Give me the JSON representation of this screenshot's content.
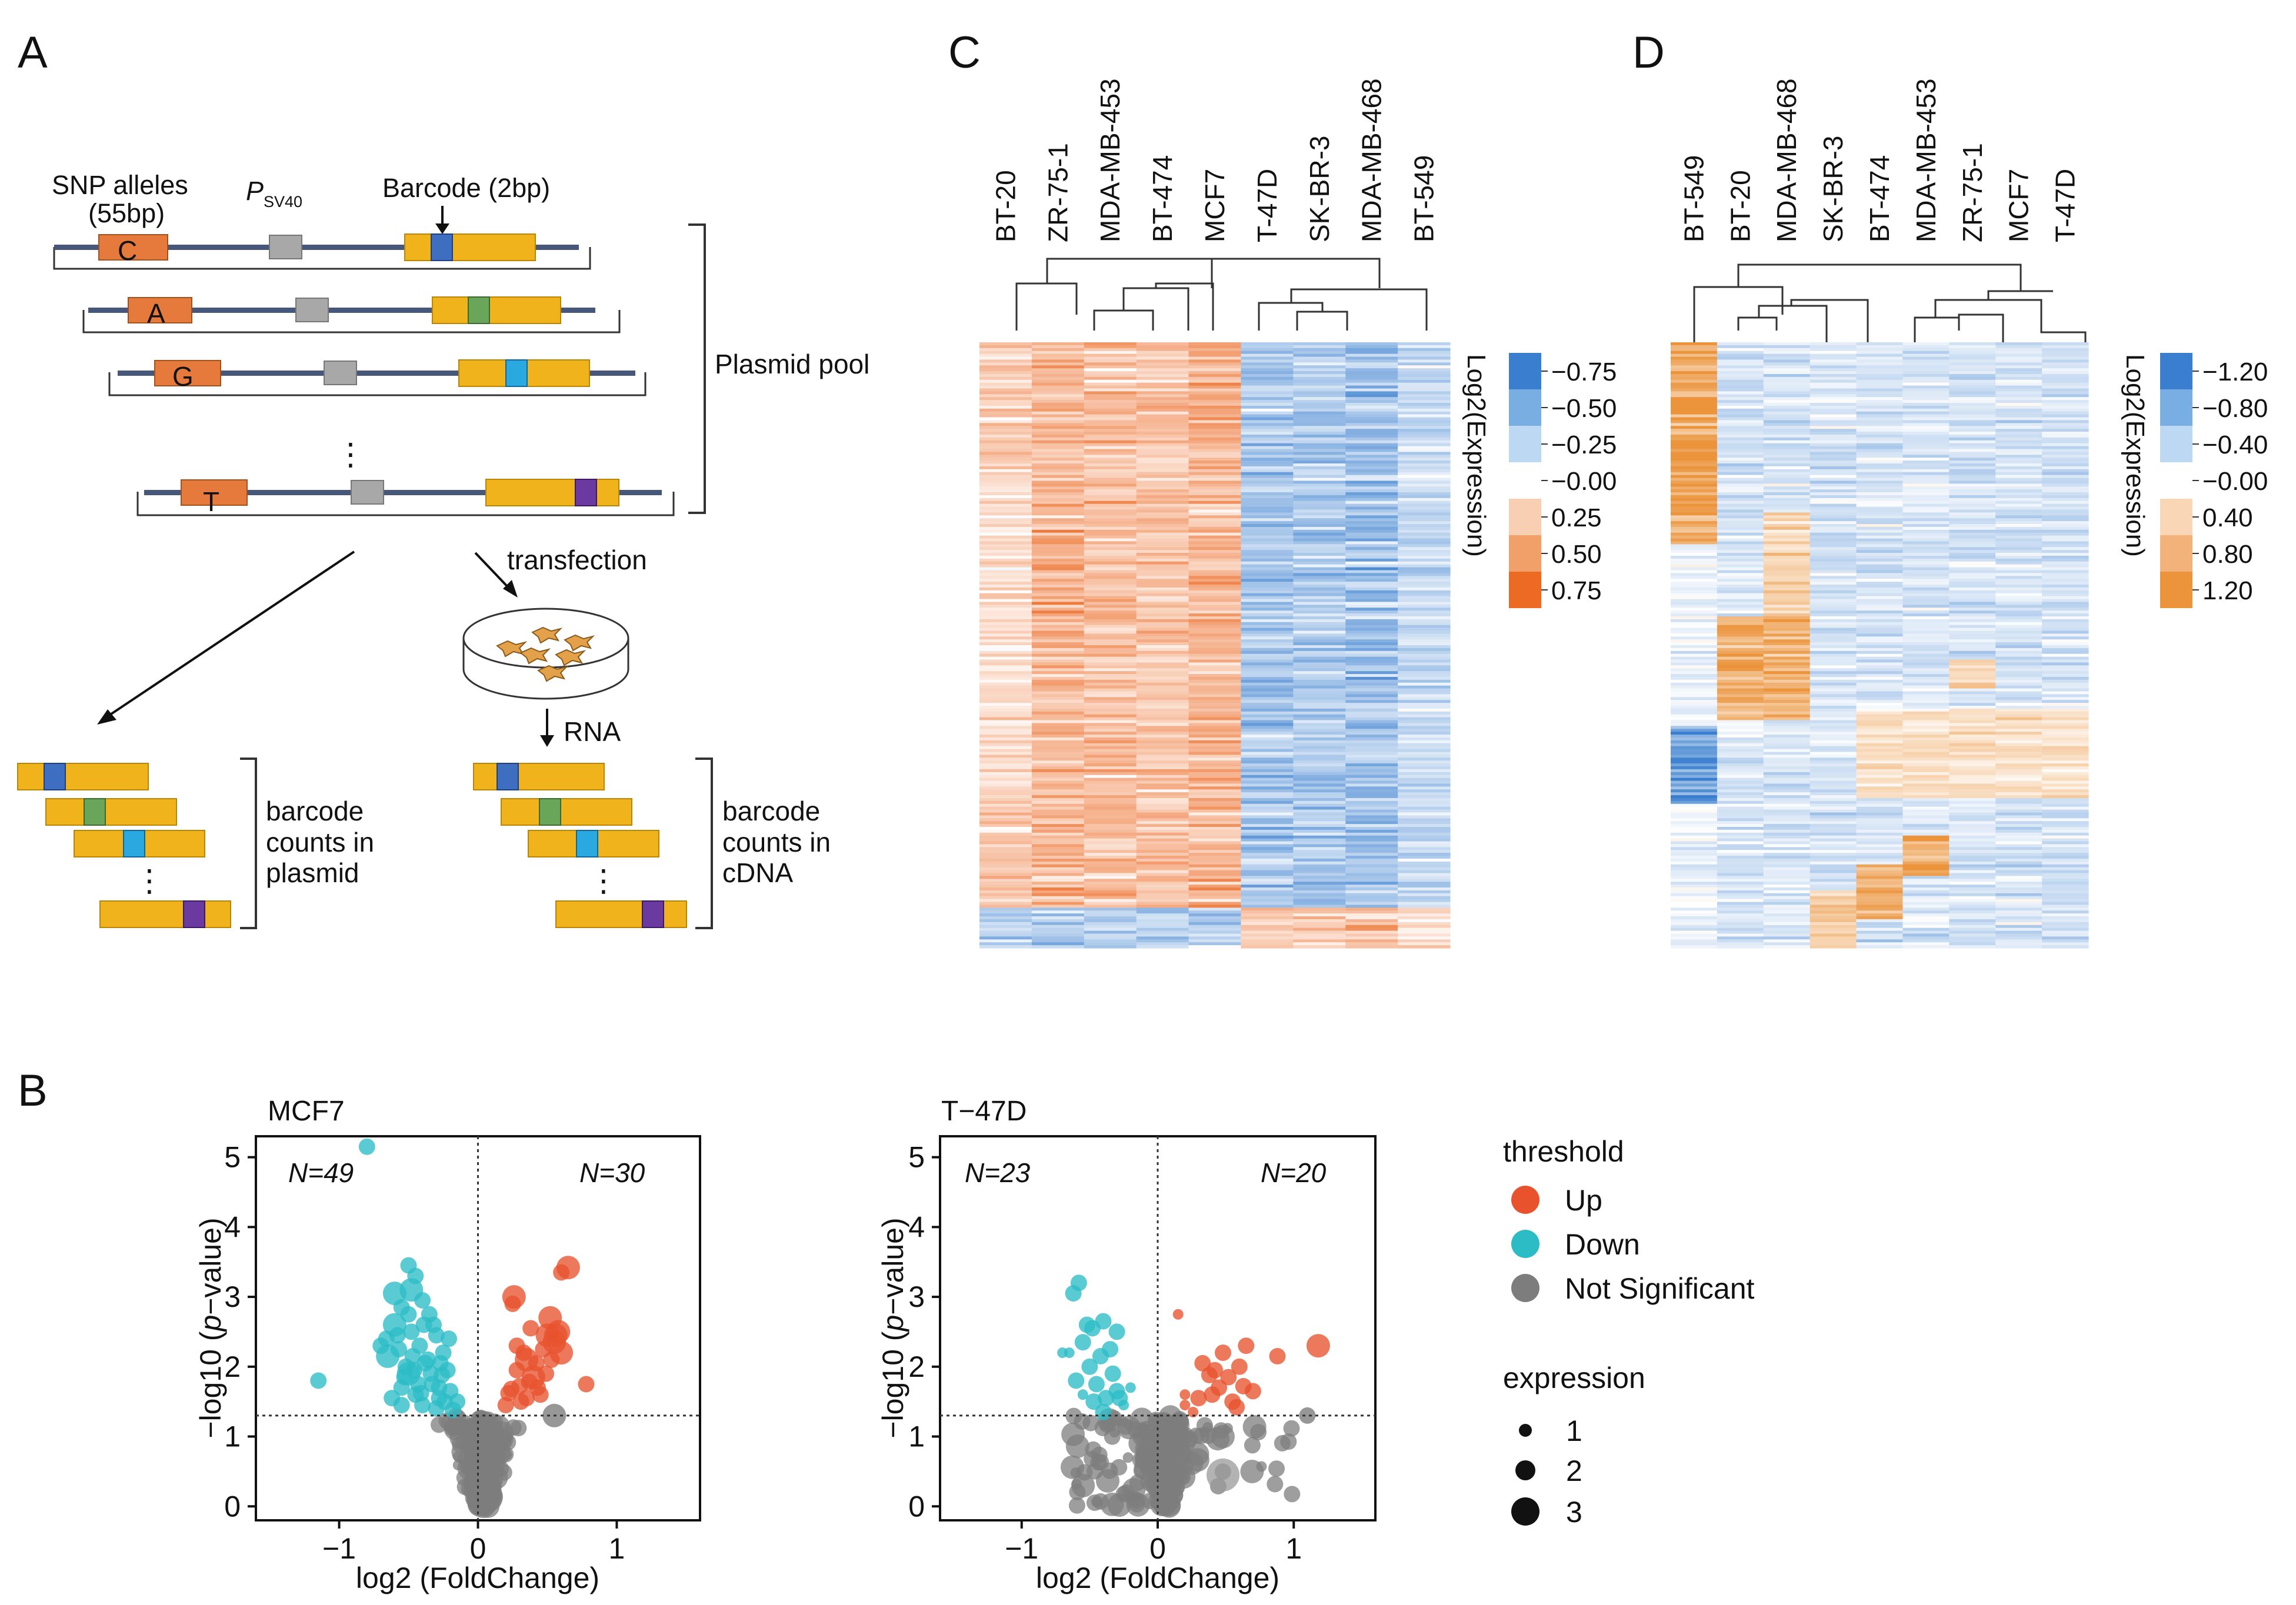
{
  "panels": {
    "a": {
      "letter": "A",
      "snp_label_1": "SNP alleles",
      "snp_label_2": "(55bp)",
      "promoter_p": "P",
      "promoter_sub": "SV40",
      "barcode_label": "Barcode (2bp)",
      "alleles": [
        "C",
        "A",
        "G",
        "T"
      ],
      "ellipsis": "⋮",
      "pool_label": "Plasmid pool",
      "transfection_label": "transfection",
      "rna_label": "RNA",
      "plasmid_counts": [
        "barcode",
        "counts in",
        "plasmid"
      ],
      "cdna_counts": [
        "barcode",
        "counts in",
        "cDNA"
      ],
      "colors": {
        "snp": "#e67a3c",
        "promoter": "#a8a8a8",
        "gene": "#f0b31c",
        "backbone": "#47577a",
        "barcodes": [
          "#3d6ec0",
          "#6aa65a",
          "#29a9e0",
          "#6a3aa0"
        ]
      }
    },
    "b": {
      "letter": "B",
      "plots": [
        {
          "title": "MCF7",
          "n_left": "N=49",
          "n_right": "N=30",
          "xlabel": "log2 (FoldChange)",
          "ylabel_pre": "−log10 (",
          "ylabel_it": "p",
          "ylabel_post": "−value)",
          "x_ticks": [
            "−1",
            "0",
            "1"
          ],
          "y_ticks": [
            "0",
            "1",
            "2",
            "3",
            "4",
            "5"
          ]
        },
        {
          "title": "T−47D",
          "n_left": "N=23",
          "n_right": "N=20",
          "xlabel": "log2 (FoldChange)",
          "ylabel_pre": "−log10 (",
          "ylabel_it": "p",
          "ylabel_post": "−value)",
          "x_ticks": [
            "−1",
            "0",
            "1"
          ],
          "y_ticks": [
            "0",
            "1",
            "2",
            "3",
            "4",
            "5"
          ]
        }
      ],
      "legend": {
        "threshold_title": "threshold",
        "threshold_items": [
          {
            "label": "Up",
            "color": "#e8532e"
          },
          {
            "label": "Down",
            "color": "#2bbcc6"
          },
          {
            "label": "Not Significant",
            "color": "#7d7d7d"
          }
        ],
        "expression_title": "expression",
        "expression_items": [
          "1",
          "2",
          "3"
        ]
      }
    },
    "c": {
      "letter": "C",
      "columns": [
        "BT-20",
        "ZR-75-1",
        "MDA-MB-453",
        "BT-474",
        "MCF7",
        "T-47D",
        "SK-BR-3",
        "MDA-MB-468",
        "BT-549"
      ],
      "scale_title": "Log2(Expression)",
      "scale_labels": [
        "−0.75",
        "−0.50",
        "−0.25",
        "−0.00",
        "0.25",
        "0.50",
        "0.75"
      ],
      "scale_colors": [
        "#3a7fcf",
        "#78aee2",
        "#bcd8f2",
        "#f8cfb2",
        "#f1a06a",
        "#ec6a24"
      ],
      "pos_rgb": [
        236,
        106,
        36
      ],
      "neg_rgb": [
        58,
        127,
        207
      ]
    },
    "d": {
      "letter": "D",
      "columns": [
        "BT-549",
        "BT-20",
        "MDA-MB-468",
        "SK-BR-3",
        "BT-474",
        "MDA-MB-453",
        "ZR-75-1",
        "MCF7",
        "T-47D"
      ],
      "scale_title": "Log2(Expression)",
      "scale_labels": [
        "−1.20",
        "−0.80",
        "−0.40",
        "−0.00",
        "0.40",
        "0.80",
        "1.20"
      ],
      "scale_colors": [
        "#3a7fcf",
        "#78aee2",
        "#bcd8f2",
        "#f8d6b6",
        "#f2b27a",
        "#eb943c"
      ],
      "pos_rgb": [
        235,
        148,
        60
      ],
      "neg_rgb": [
        58,
        127,
        207
      ]
    }
  },
  "chart_data": [
    {
      "type": "scatter",
      "title": "MCF7",
      "xlabel": "log2 (FoldChange)",
      "ylabel": "−log10 (p−value)",
      "xlim": [
        -1.6,
        1.6
      ],
      "ylim": [
        -0.2,
        5.3
      ],
      "threshold_y": 1.3,
      "threshold_x": 0,
      "series": [
        {
          "name": "Up",
          "points": [
            [
              0.22,
              1.62
            ],
            [
              0.28,
              1.95
            ],
            [
              0.35,
              2.1
            ],
            [
              0.42,
              2.05
            ],
            [
              0.5,
              2.45
            ],
            [
              0.55,
              2.35
            ],
            [
              0.6,
              3.35
            ],
            [
              0.65,
              3.42
            ],
            [
              0.25,
              2.9
            ],
            [
              0.38,
              2.55
            ],
            [
              0.47,
              2.25
            ],
            [
              0.3,
              1.72
            ],
            [
              0.4,
              1.85
            ],
            [
              0.52,
              2.7
            ],
            [
              0.58,
              2.5
            ],
            [
              0.35,
              1.55
            ],
            [
              0.45,
              1.6
            ],
            [
              0.78,
              1.75
            ],
            [
              0.2,
              1.45
            ],
            [
              0.28,
              2.3
            ],
            [
              0.33,
              2.2
            ],
            [
              0.56,
              2.45
            ],
            [
              0.26,
              3.0
            ],
            [
              0.49,
              1.9
            ],
            [
              0.43,
              1.7
            ],
            [
              0.31,
              1.5
            ],
            [
              0.37,
              1.78
            ],
            [
              0.24,
              1.68
            ],
            [
              0.6,
              2.2
            ],
            [
              0.53,
              2.1
            ]
          ],
          "sizes": [
            2,
            2,
            3,
            2,
            3,
            3,
            2,
            3,
            2,
            2,
            2,
            2,
            3,
            3,
            3,
            2,
            2,
            2,
            2,
            2,
            2,
            3,
            3,
            2,
            2,
            2,
            2,
            2,
            3,
            2
          ]
        },
        {
          "name": "Down",
          "points": [
            [
              -0.8,
              5.15
            ],
            [
              -0.5,
              3.45
            ],
            [
              -0.45,
              3.3
            ],
            [
              -0.6,
              3.05
            ],
            [
              -0.55,
              2.85
            ],
            [
              -0.4,
              2.95
            ],
            [
              -0.35,
              2.75
            ],
            [
              -0.65,
              2.15
            ],
            [
              -0.7,
              2.3
            ],
            [
              -0.48,
              2.5
            ],
            [
              -0.3,
              2.45
            ],
            [
              -0.25,
              2.2
            ],
            [
              -0.42,
              2.3
            ],
            [
              -0.38,
              2.05
            ],
            [
              -0.5,
              1.9
            ],
            [
              -0.55,
              1.7
            ],
            [
              -0.33,
              1.75
            ],
            [
              -0.28,
              1.55
            ],
            [
              -0.45,
              1.6
            ],
            [
              -0.2,
              1.65
            ],
            [
              -0.15,
              1.5
            ],
            [
              -1.15,
              1.8
            ],
            [
              -0.6,
              2.6
            ],
            [
              -0.32,
              2.6
            ],
            [
              -0.22,
              1.95
            ],
            [
              -0.58,
              2.45
            ],
            [
              -0.5,
              2.75
            ],
            [
              -0.62,
              1.55
            ],
            [
              -0.4,
              1.45
            ],
            [
              -0.36,
              2.1
            ],
            [
              -0.26,
              1.88
            ],
            [
              -0.47,
              2.15
            ],
            [
              -0.52,
              2.0
            ],
            [
              -0.43,
              1.75
            ],
            [
              -0.3,
              1.4
            ],
            [
              -0.18,
              1.38
            ],
            [
              -0.55,
              1.45
            ],
            [
              -0.66,
              2.4
            ],
            [
              -0.48,
              3.1
            ],
            [
              -0.39,
              2.6
            ],
            [
              -0.21,
              2.4
            ],
            [
              -0.28,
              1.7
            ],
            [
              -0.34,
              1.9
            ],
            [
              -0.46,
              1.95
            ],
            [
              -0.57,
              2.25
            ],
            [
              -0.27,
              2.05
            ],
            [
              -0.24,
              1.5
            ],
            [
              -0.41,
              1.62
            ],
            [
              -0.53,
              1.85
            ]
          ],
          "sizes": [
            2,
            2,
            2,
            3,
            2,
            2,
            2,
            3,
            2,
            2,
            2,
            2,
            2,
            2,
            3,
            2,
            2,
            2,
            2,
            2,
            2,
            2,
            3,
            2,
            2,
            2,
            2,
            2,
            2,
            2,
            2,
            2,
            2,
            2,
            2,
            2,
            2,
            2,
            3,
            2,
            2,
            2,
            2,
            2,
            2,
            2,
            2,
            2,
            2
          ]
        },
        {
          "name": "Not Significant",
          "clusters": "approx. 200 points concentrated along the volcano shape between x −0.4 and 0.55, y 0 to 1.3; notable points (0.55,1.3), (0.22,1.25)"
        }
      ]
    },
    {
      "type": "scatter",
      "title": "T−47D",
      "xlabel": "log2 (FoldChange)",
      "ylabel": "−log10 (p−value)",
      "xlim": [
        -1.6,
        1.6
      ],
      "ylim": [
        -0.2,
        5.3
      ],
      "threshold_y": 1.3,
      "threshold_x": 0,
      "series": [
        {
          "name": "Up",
          "points": [
            [
              1.18,
              2.3
            ],
            [
              0.88,
              2.15
            ],
            [
              0.65,
              2.3
            ],
            [
              0.6,
              2.0
            ],
            [
              0.52,
              1.85
            ],
            [
              0.45,
              1.7
            ],
            [
              0.4,
              1.6
            ],
            [
              0.3,
              1.55
            ],
            [
              0.2,
              1.45
            ],
            [
              0.55,
              1.5
            ],
            [
              0.7,
              1.65
            ],
            [
              0.33,
              2.05
            ],
            [
              0.15,
              2.75
            ],
            [
              0.48,
              2.2
            ],
            [
              0.26,
              1.35
            ],
            [
              0.38,
              1.88
            ],
            [
              0.58,
              1.42
            ],
            [
              0.63,
              1.72
            ],
            [
              0.2,
              1.6
            ],
            [
              0.42,
              1.95
            ]
          ],
          "sizes": [
            3,
            2,
            2,
            2,
            2,
            2,
            2,
            2,
            1,
            2,
            2,
            2,
            1,
            2,
            1,
            2,
            2,
            2,
            1,
            2
          ]
        },
        {
          "name": "Down",
          "points": [
            [
              -0.58,
              3.2
            ],
            [
              -0.62,
              3.05
            ],
            [
              -0.4,
              2.65
            ],
            [
              -0.48,
              2.55
            ],
            [
              -0.65,
              2.2
            ],
            [
              -0.55,
              2.35
            ],
            [
              -0.3,
              2.5
            ],
            [
              -0.35,
              2.25
            ],
            [
              -0.42,
              2.15
            ],
            [
              -0.5,
              2.0
            ],
            [
              -0.45,
              1.75
            ],
            [
              -0.3,
              1.65
            ],
            [
              -0.38,
              1.55
            ],
            [
              -0.55,
              1.6
            ],
            [
              -0.6,
              1.8
            ],
            [
              -0.25,
              1.45
            ],
            [
              -0.33,
              1.9
            ],
            [
              -0.2,
              1.7
            ],
            [
              -0.7,
              2.2
            ],
            [
              -0.47,
              1.5
            ],
            [
              -0.28,
              1.55
            ],
            [
              -0.52,
              2.6
            ],
            [
              -0.4,
              1.35
            ]
          ],
          "sizes": [
            2,
            2,
            2,
            2,
            1,
            2,
            2,
            2,
            2,
            2,
            2,
            2,
            2,
            1,
            2,
            1,
            2,
            1,
            1,
            2,
            2,
            2,
            2
          ]
        },
        {
          "name": "Not Significant",
          "clusters": "approx. 200 points along the volcano shape between x −0.65 and 1.1, y 0 to 1.3; large point (0.48,0.45); point (1.1,1.3)"
        }
      ]
    },
    {
      "type": "heatmap",
      "title": "C",
      "columns": [
        "BT-20",
        "ZR-75-1",
        "MDA-MB-453",
        "BT-474",
        "MCF7",
        "T-47D",
        "SK-BR-3",
        "MDA-MB-468",
        "BT-549"
      ],
      "column_cluster_means": [
        0.28,
        0.38,
        0.33,
        0.3,
        0.36,
        -0.35,
        -0.32,
        -0.38,
        -0.22
      ],
      "value_range": [
        -0.75,
        0.75
      ],
      "n_rows_approx": 210,
      "colorbar": {
        "title": "Log2(Expression)",
        "ticks": [
          -0.75,
          -0.5,
          -0.25,
          0,
          0.25,
          0.5,
          0.75
        ]
      },
      "dendrogram": "two clusters: {BT-20, ZR-75-1, MDA-MB-453, BT-474, MCF7} and {T-47D, SK-BR-3, MDA-MB-468, BT-549}"
    },
    {
      "type": "heatmap",
      "title": "D",
      "columns": [
        "BT-549",
        "BT-20",
        "MDA-MB-468",
        "SK-BR-3",
        "BT-474",
        "MDA-MB-453",
        "ZR-75-1",
        "MCF7",
        "T-47D"
      ],
      "value_range": [
        -1.2,
        1.2
      ],
      "n_rows_approx": 210,
      "colorbar": {
        "title": "Log2(Expression)",
        "ticks": [
          -1.2,
          -0.8,
          -0.4,
          0,
          0.4,
          0.8,
          1.2
        ]
      },
      "dendrogram": "two clusters: {BT-549, BT-20, MDA-MB-468, SK-BR-3} and {BT-474, MDA-MB-453, ZR-75-1, MCF7, T-47D}"
    }
  ]
}
